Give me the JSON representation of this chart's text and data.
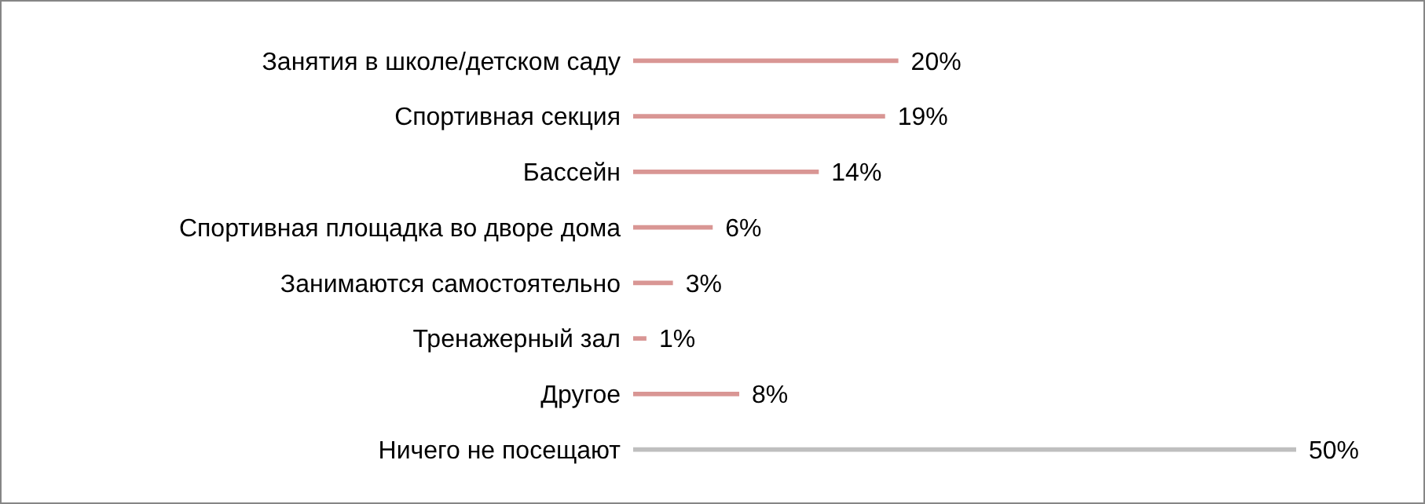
{
  "chart_data": {
    "type": "bar",
    "orientation": "horizontal",
    "categories": [
      "Занятия в школе/детском саду",
      "Спортивная секция",
      "Бассейн",
      "Спортивная площадка во дворе дома",
      "Занимаются самостоятельно",
      "Тренажерный зал",
      "Другое",
      "Ничего не посещают"
    ],
    "values": [
      20,
      19,
      14,
      6,
      3,
      1,
      8,
      50
    ],
    "colors": [
      "#d99694",
      "#d99694",
      "#d99694",
      "#d99694",
      "#d99694",
      "#d99694",
      "#d99694",
      "#bfbfbf"
    ],
    "value_labels": [
      "20%",
      "19%",
      "14%",
      "6%",
      "3%",
      "1%",
      "8%",
      "50%"
    ],
    "grid": false,
    "legend": false
  }
}
